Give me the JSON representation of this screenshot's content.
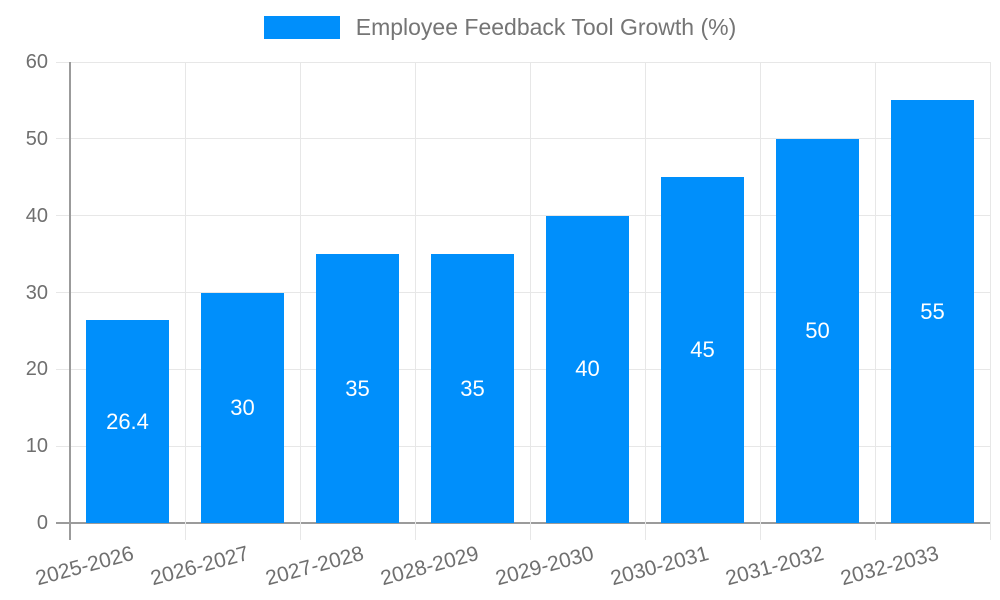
{
  "legend": {
    "label": "Employee Feedback Tool Growth (%)"
  },
  "colors": {
    "bar": "#008FFB",
    "grid": "#e7e7e7",
    "axis": "#9b9b9b",
    "tick_label": "#6f6f6f",
    "legend_text": "#757575",
    "bar_label": "#ffffff",
    "background": "#ffffff"
  },
  "chart_data": {
    "type": "bar",
    "title": "Employee Feedback Tool Growth (%)",
    "categories": [
      "2025-2026",
      "2026-2027",
      "2027-2028",
      "2028-2029",
      "2029-2030",
      "2030-2031",
      "2031-2032",
      "2032-2033"
    ],
    "values": [
      26.4,
      30,
      35,
      35,
      40,
      45,
      50,
      55
    ],
    "value_labels": [
      "26.4",
      "30",
      "35",
      "35",
      "40",
      "45",
      "50",
      "55"
    ],
    "xlabel": "",
    "ylabel": "",
    "ylim": [
      0,
      60
    ],
    "yticks": [
      0,
      10,
      20,
      30,
      40,
      50,
      60
    ],
    "grid": true,
    "legend_position": "top",
    "x_label_rotation": -15
  }
}
